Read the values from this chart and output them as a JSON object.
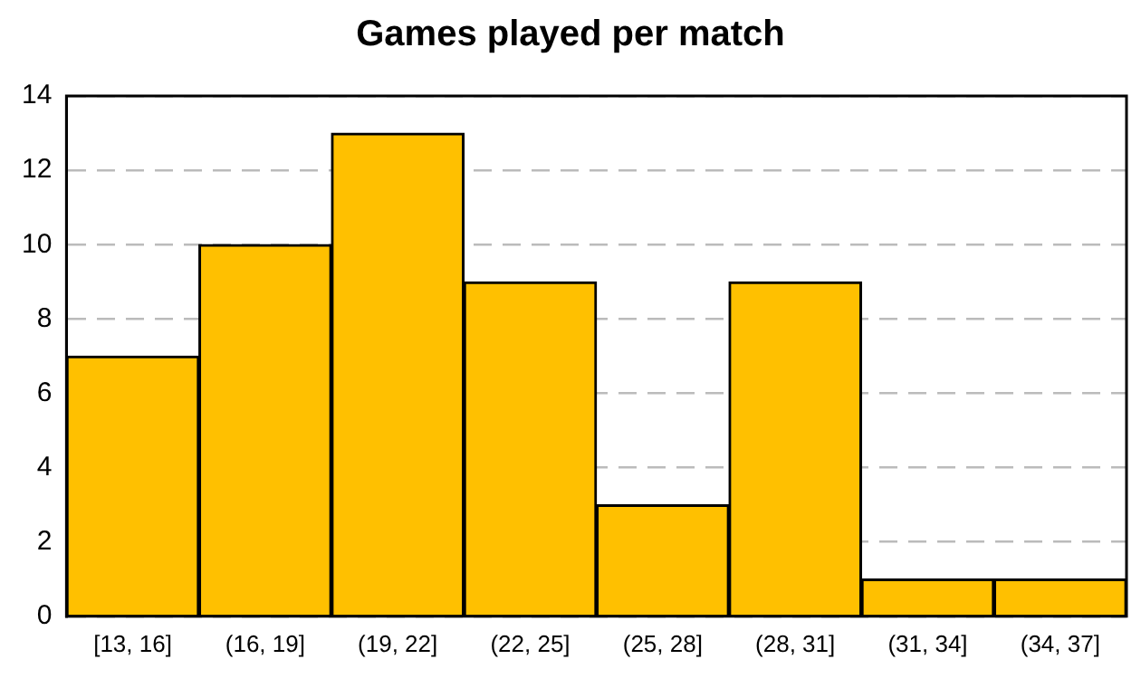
{
  "chart_data": {
    "type": "bar",
    "title": "Games played per match",
    "categories": [
      "[13, 16]",
      "(16, 19]",
      "(19, 22]",
      "(22, 25]",
      "(25, 28]",
      "(28, 31]",
      "(31, 34]",
      "(34, 37]"
    ],
    "values": [
      7,
      10,
      13,
      9,
      3,
      9,
      1,
      1
    ],
    "color": "#ffc000",
    "ylim": [
      0,
      14
    ],
    "yticks": [
      0,
      2,
      4,
      6,
      8,
      10,
      12,
      14
    ],
    "grid": "y",
    "legend": false
  }
}
